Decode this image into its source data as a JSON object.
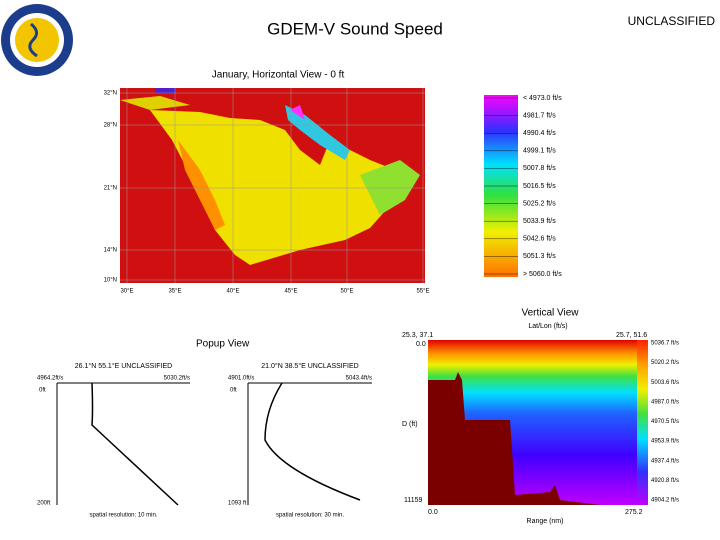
{
  "header": {
    "title": "GDEM-V Sound Speed",
    "classification": "UNCLASSIFIED"
  },
  "horizontal_view": {
    "title": "January, Horizontal View - 0 ft",
    "lat_labels": [
      "32°N",
      "28°N",
      "21°N",
      "14°N",
      "10°N"
    ],
    "lon_labels": [
      "30°E",
      "35°E",
      "40°E",
      "45°E",
      "50°E",
      "55°E"
    ],
    "legend": [
      "< 4973.0 ft/s",
      "4981.7 ft/s",
      "4990.4 ft/s",
      "4999.1 ft/s",
      "5007.8 ft/s",
      "5016.5 ft/s",
      "5025.2 ft/s",
      "5033.9 ft/s",
      "5042.6 ft/s",
      "5051.3 ft/s",
      "> 5060.0 ft/s"
    ]
  },
  "popup_view": {
    "title": "Popup View",
    "panels": [
      {
        "title": "26.1°N 55.1°E UNCLASSIFIED",
        "min": "4964.2ft/s",
        "max": "5030.2ft/s",
        "top": "0ft",
        "bottom": "200ft",
        "note": "spatial resolution: 10 min."
      },
      {
        "title": "21.0°N 38.5°E UNCLASSIFIED",
        "min": "4901.0ft/s",
        "max": "5043.4ft/s",
        "top": "0ft",
        "bottom": "1093 ft",
        "note": "spatial resolution: 30 min."
      }
    ]
  },
  "vertical_view": {
    "title": "Vertical View",
    "subtitle": "Lat/Lon (ft/s)",
    "start": "25.3, 37.1",
    "end": "25.7, 51.6",
    "depth_top": "0.0",
    "depth_label": "D (ft)",
    "depth_bottom": "11159",
    "range_start": "0.0",
    "range_end": "275.2",
    "range_label": "Range (nm)",
    "legend": [
      "5036.7 ft/s",
      "5020.2 ft/s",
      "5003.6 ft/s",
      "4987.0 ft/s",
      "4970.5 ft/s",
      "4953.9 ft/s",
      "4937.4 ft/s",
      "4920.8 ft/s",
      "4904.2 ft/s"
    ]
  }
}
